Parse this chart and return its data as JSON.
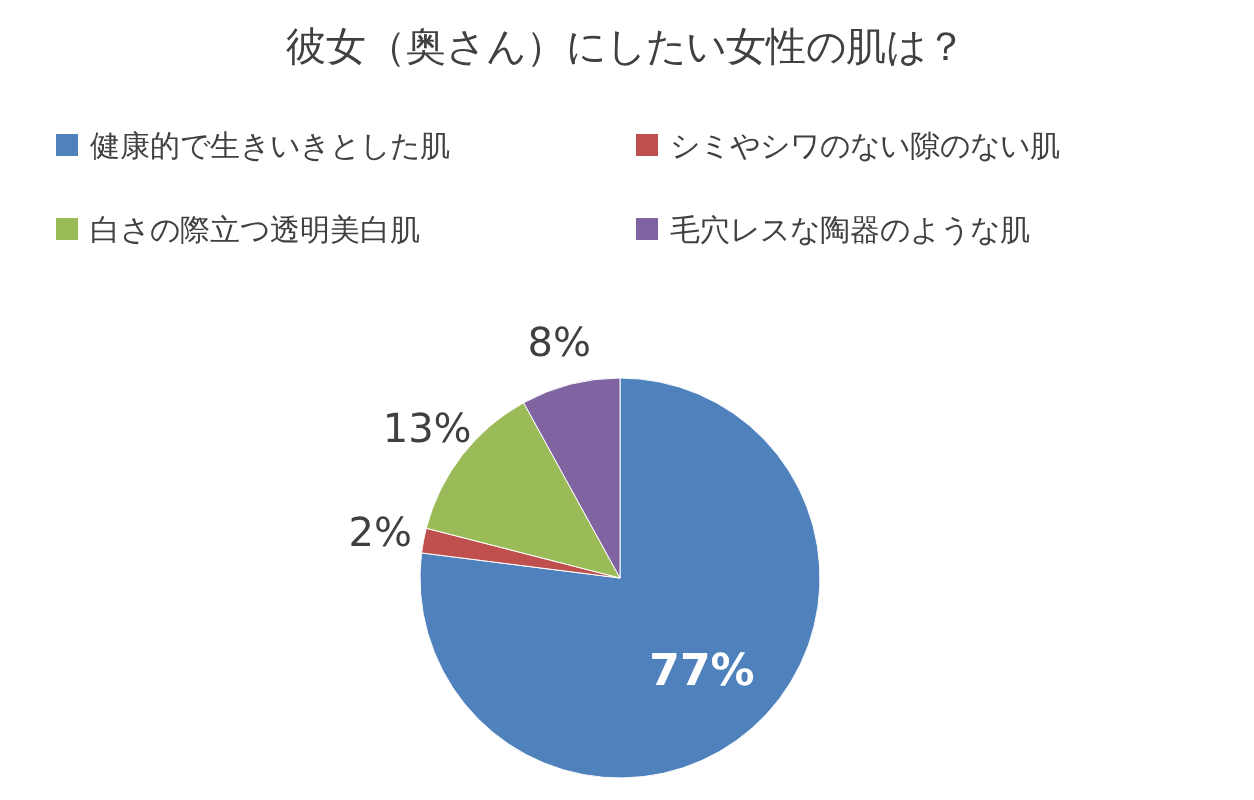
{
  "chart_data": {
    "type": "pie",
    "title": "彼女（奥さん）にしたい女性の肌は？",
    "categories": [
      "健康的で生きいきとした肌",
      "シミやシワのない隙のない肌",
      "白さの際立つ透明美白肌",
      "毛穴レスな陶器のような肌"
    ],
    "values": [
      77,
      2,
      13,
      8
    ],
    "colors": [
      "#4f81bd",
      "#c0504d",
      "#9bbb59",
      "#8064a2"
    ],
    "value_labels": [
      "77%",
      "2%",
      "13%",
      "8%"
    ],
    "legend": "top"
  }
}
